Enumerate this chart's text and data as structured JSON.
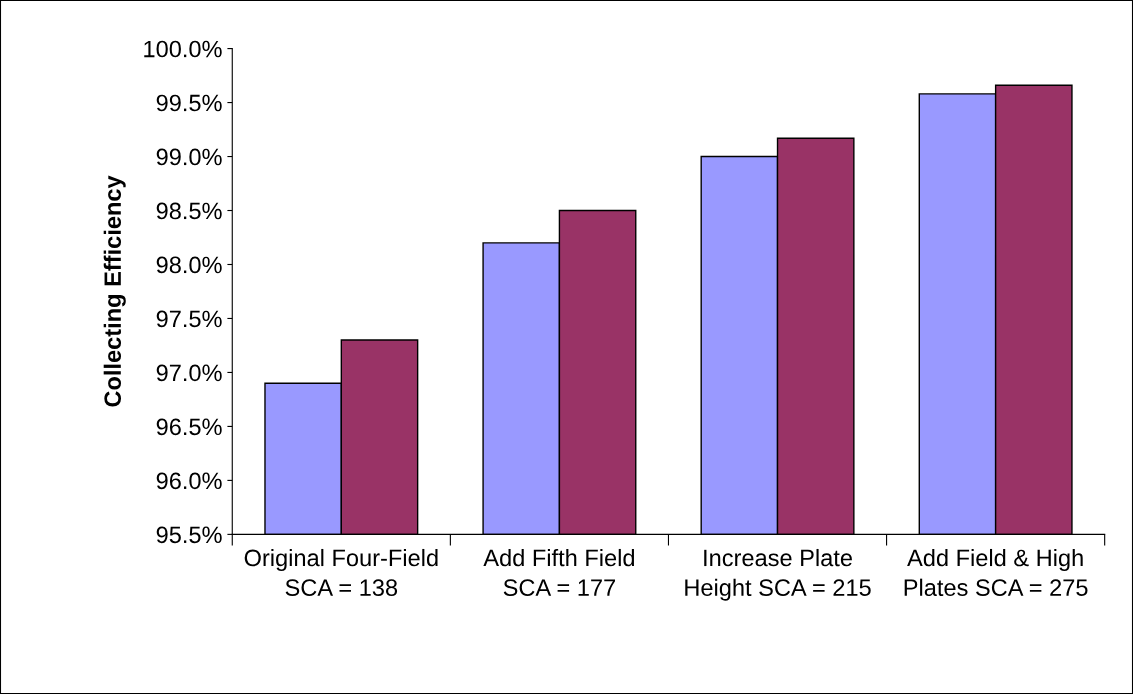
{
  "chart_data": {
    "type": "bar",
    "ylabel": "Collecting Efficiency",
    "categories": [
      "Original Four-Field SCA = 138",
      "Add Fifth Field SCA = 177",
      "Increase Plate Height SCA = 215",
      "Add Field & High Plates SCA = 275"
    ],
    "series": [
      {
        "color": "#9999ff",
        "values": [
          96.9,
          98.2,
          99.0,
          99.58
        ]
      },
      {
        "color": "#993366",
        "values": [
          97.3,
          98.5,
          99.17,
          99.66
        ]
      }
    ],
    "ylim": [
      95.5,
      100
    ],
    "yticks": [
      {
        "value": 95.5,
        "label": "95.5%"
      },
      {
        "value": 96,
        "label": "96.0%"
      },
      {
        "value": 96.5,
        "label": "96.5%"
      },
      {
        "value": 97,
        "label": "97.0%"
      },
      {
        "value": 97.5,
        "label": "97.5%"
      },
      {
        "value": 98,
        "label": "98.0%"
      },
      {
        "value": 98.5,
        "label": "98.5%"
      },
      {
        "value": 99,
        "label": "99.0%"
      },
      {
        "value": 99.5,
        "label": "99.5%"
      },
      {
        "value": 100,
        "label": "100.0%"
      }
    ],
    "grid": false
  }
}
